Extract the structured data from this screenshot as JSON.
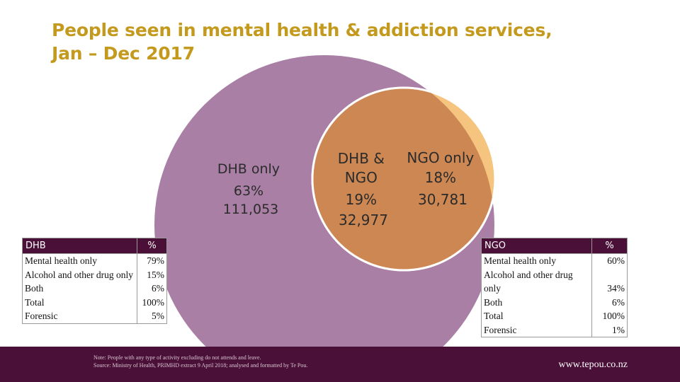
{
  "title_line1": "People seen in mental health & addiction services,",
  "title_line2": "Jan – Dec 2017",
  "chart_data": {
    "type": "venn",
    "title": "People seen in mental health & addiction services, Jan – Dec 2017",
    "sets": [
      {
        "name": "DHB",
        "color": "#a97fa5"
      },
      {
        "name": "NGO",
        "color": "#f5c47e"
      }
    ],
    "regions": [
      {
        "key": "dhb_only",
        "lines": [
          "DHB only",
          "63%",
          "111,053"
        ],
        "percent": 63,
        "count": 111053,
        "color": "#a97fa5"
      },
      {
        "key": "overlap",
        "lines": [
          "DHB &",
          "NGO",
          "19%",
          "32,977"
        ],
        "percent": 19,
        "count": 32977,
        "color": "#cd8753"
      },
      {
        "key": "ngo_only",
        "lines": [
          "NGO only",
          "18%",
          "30,781"
        ],
        "percent": 18,
        "count": 30781,
        "color": "#f5c47e"
      }
    ]
  },
  "dhb_table": {
    "headers": [
      "DHB",
      "%"
    ],
    "rows": [
      [
        "Mental health only",
        "79%"
      ],
      [
        "Alcohol and other drug only",
        "15%"
      ],
      [
        "Both",
        "6%"
      ],
      [
        "Total",
        "100%"
      ],
      [
        "Forensic",
        "5%"
      ]
    ]
  },
  "ngo_table": {
    "headers": [
      "NGO",
      "%"
    ],
    "rows": [
      [
        "Mental health only",
        "60%"
      ],
      [
        "Alcohol and other drug only",
        "34%"
      ],
      [
        "Both",
        "6%"
      ],
      [
        "Total",
        "100%"
      ],
      [
        "Forensic",
        "1%"
      ]
    ]
  },
  "footer": {
    "note_line1": "Note: People with any type of activity excluding do not attends and leave.",
    "note_line2": "Source: Ministry of Health, PRIMHD extract 9 April 2018; analysed and formatted by Te Pou.",
    "url": "www.tepou.co.nz",
    "bar_color": "#4a1038"
  }
}
